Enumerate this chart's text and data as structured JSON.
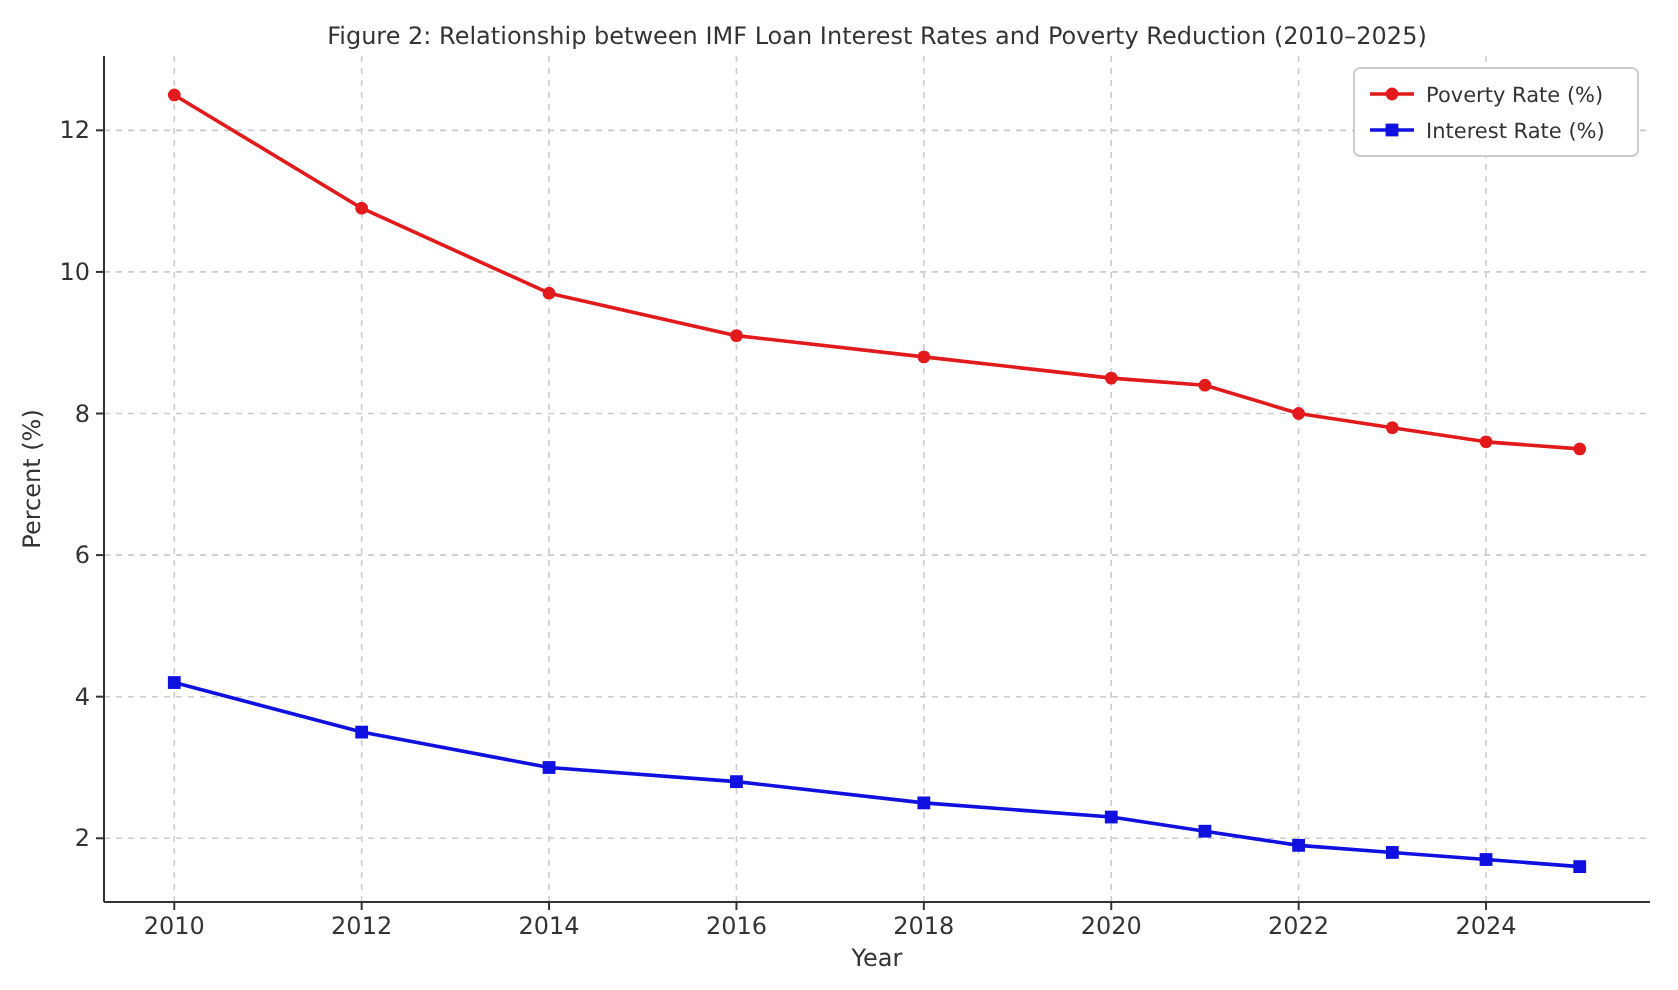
{
  "chart_data": {
    "type": "line",
    "title": "Figure 2: Relationship between IMF Loan Interest Rates and Poverty Reduction (2010–2025)",
    "xlabel": "Year",
    "ylabel": "Percent (%)",
    "x": [
      2010,
      2012,
      2014,
      2016,
      2018,
      2020,
      2021,
      2022,
      2023,
      2024,
      2025
    ],
    "series": [
      {
        "name": "Poverty Rate (%)",
        "color": "#e31a1c",
        "marker": "circle",
        "values": [
          12.5,
          10.9,
          9.7,
          9.1,
          8.8,
          8.5,
          8.4,
          8.0,
          7.8,
          7.6,
          7.5
        ]
      },
      {
        "name": "Interest Rate (%)",
        "color": "#1010e0",
        "marker": "square",
        "values": [
          4.2,
          3.5,
          3.0,
          2.8,
          2.5,
          2.3,
          2.1,
          1.9,
          1.8,
          1.7,
          1.6
        ]
      }
    ],
    "xlim": [
      2009.25,
      2025.75
    ],
    "xticks": [
      2010,
      2012,
      2014,
      2016,
      2018,
      2020,
      2022,
      2024
    ],
    "ylim": [
      1.1,
      13.05
    ],
    "yticks": [
      2,
      4,
      6,
      8,
      10,
      12
    ],
    "grid": true,
    "legend": "top right",
    "line_style": "solid"
  }
}
